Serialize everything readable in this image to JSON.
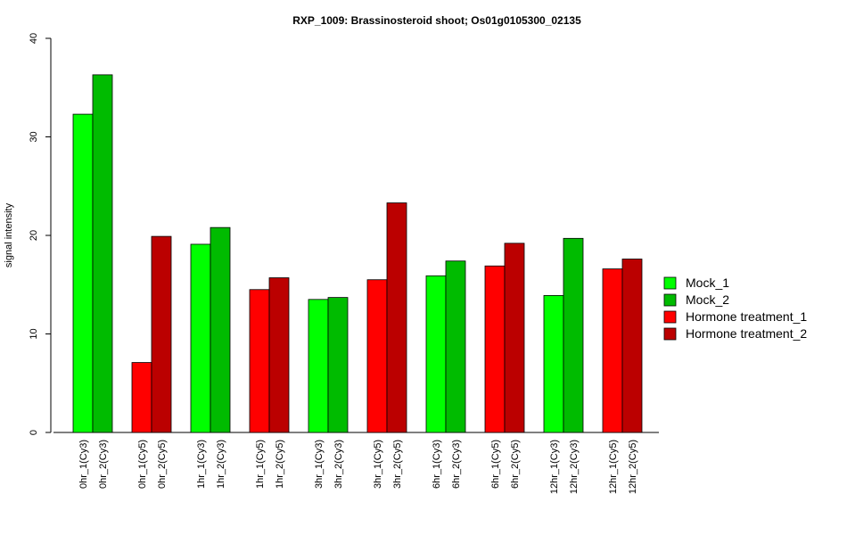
{
  "chart_data": {
    "type": "bar",
    "title": "RXP_1009: Brassinosteroid shoot; Os01g0105300_02135",
    "xlabel": "",
    "ylabel": "signal intensity",
    "ylim": [
      0,
      40
    ],
    "yticks": [
      "0",
      "10",
      "20",
      "30",
      "40"
    ],
    "grid": false,
    "legend_position": "right",
    "legend": [
      {
        "name": "Mock_1",
        "color": "#00ff00"
      },
      {
        "name": "Mock_2",
        "color": "#00bb00"
      },
      {
        "name": "Hormone treatment_1",
        "color": "#ff0000"
      },
      {
        "name": "Hormone treatment_2",
        "color": "#bb0000"
      }
    ],
    "bars": [
      {
        "label": "0hr_1(Cy3)",
        "value": 32.3,
        "series": 0
      },
      {
        "label": "0hr_2(Cy3)",
        "value": 36.3,
        "series": 1
      },
      {
        "label": "0hr_1(Cy5)",
        "value": 7.1,
        "series": 2
      },
      {
        "label": "0hr_2(Cy5)",
        "value": 19.9,
        "series": 3
      },
      {
        "label": "1hr_1(Cy3)",
        "value": 19.1,
        "series": 0
      },
      {
        "label": "1hr_2(Cy3)",
        "value": 20.8,
        "series": 1
      },
      {
        "label": "1hr_1(Cy5)",
        "value": 14.5,
        "series": 2
      },
      {
        "label": "1hr_2(Cy5)",
        "value": 15.7,
        "series": 3
      },
      {
        "label": "3hr_1(Cy3)",
        "value": 13.5,
        "series": 0
      },
      {
        "label": "3hr_2(Cy3)",
        "value": 13.7,
        "series": 1
      },
      {
        "label": "3hr_1(Cy5)",
        "value": 15.5,
        "series": 2
      },
      {
        "label": "3hr_2(Cy5)",
        "value": 23.3,
        "series": 3
      },
      {
        "label": "6hr_1(Cy3)",
        "value": 15.9,
        "series": 0
      },
      {
        "label": "6hr_2(Cy3)",
        "value": 17.4,
        "series": 1
      },
      {
        "label": "6hr_1(Cy5)",
        "value": 16.9,
        "series": 2
      },
      {
        "label": "6hr_2(Cy5)",
        "value": 19.2,
        "series": 3
      },
      {
        "label": "12hr_1(Cy3)",
        "value": 13.9,
        "series": 0
      },
      {
        "label": "12hr_2(Cy3)",
        "value": 19.7,
        "series": 1
      },
      {
        "label": "12hr_1(Cy5)",
        "value": 16.6,
        "series": 2
      },
      {
        "label": "12hr_2(Cy5)",
        "value": 17.6,
        "series": 3
      }
    ]
  }
}
